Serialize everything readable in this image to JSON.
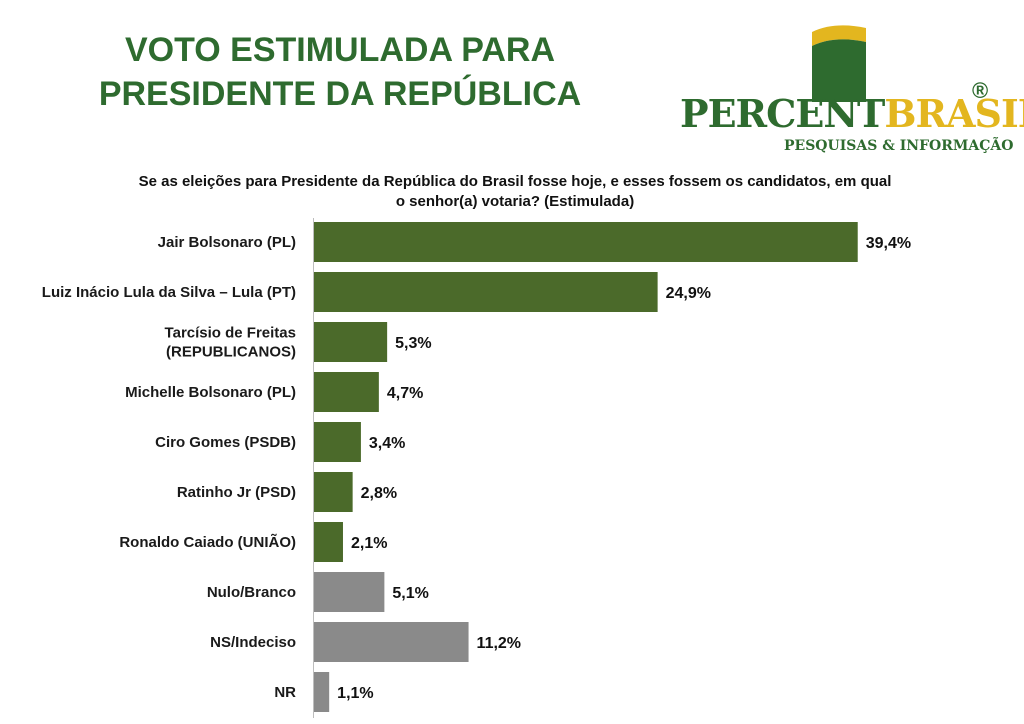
{
  "header": {
    "title_line1": "VOTO ESTIMULADA PARA",
    "title_line2": "PRESIDENTE DA REPÚBLICA"
  },
  "logo": {
    "word_part1": "PERCENT",
    "word_part2": "BRASIL",
    "registered": "®",
    "subtitle": "PESQUISAS & INFORMAÇÃO",
    "color_green": "#2e6b2f",
    "color_yellow": "#e3b61f"
  },
  "question": {
    "line1": "Se as eleições para Presidente da República do Brasil fosse hoje, e esses fossem os candidatos, em qual",
    "line2": "o senhor(a) votaria? (Estimulada)"
  },
  "chart_data": {
    "type": "bar",
    "orientation": "horizontal",
    "categories": [
      [
        "Jair Bolsonaro (PL)"
      ],
      [
        "Luiz Inácio Lula da Silva – Lula (PT)"
      ],
      [
        "Tarcísio de Freitas",
        "(REPUBLICANOS)"
      ],
      [
        "Michelle Bolsonaro (PL)"
      ],
      [
        "Ciro Gomes (PSDB)"
      ],
      [
        "Ratinho Jr (PSD)"
      ],
      [
        "Ronaldo Caiado (UNIÃO)"
      ],
      [
        "Nulo/Branco"
      ],
      [
        "NS/Indeciso"
      ],
      [
        "NR"
      ]
    ],
    "values": [
      39.4,
      24.9,
      5.3,
      4.7,
      3.4,
      2.8,
      2.1,
      5.1,
      11.2,
      1.1
    ],
    "value_labels": [
      "39,4%",
      "24,9%",
      "5,3%",
      "4,7%",
      "3,4%",
      "2,8%",
      "2,1%",
      "5,1%",
      "11,2%",
      "1,1%"
    ],
    "bar_colors": [
      "#4b6a2a",
      "#4b6a2a",
      "#4b6a2a",
      "#4b6a2a",
      "#4b6a2a",
      "#4b6a2a",
      "#4b6a2a",
      "#8a8a8a",
      "#8a8a8a",
      "#8a8a8a"
    ],
    "xlim": [
      0,
      40
    ],
    "grid": false,
    "legend": "none"
  }
}
